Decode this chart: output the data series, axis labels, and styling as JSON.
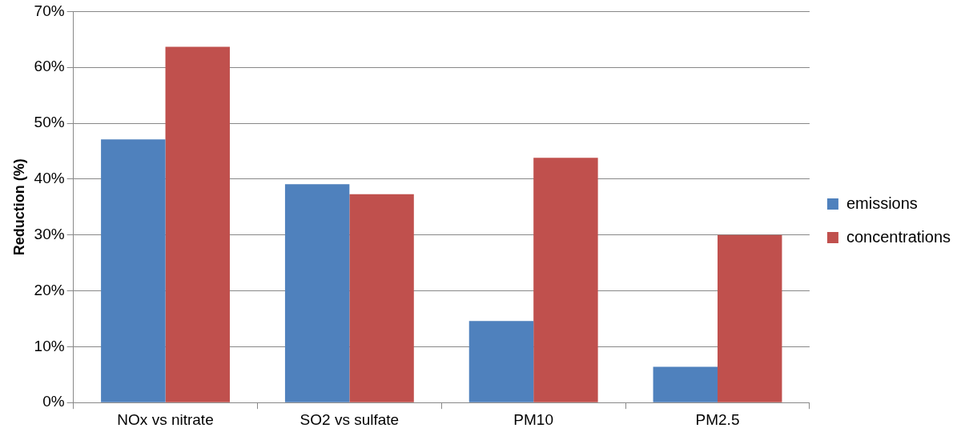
{
  "chart_data": {
    "type": "bar",
    "ylabel": "Reduction (%)",
    "categories": [
      "NOx vs nitrate",
      "SO2 vs sulfate",
      "PM10",
      "PM2.5"
    ],
    "series": [
      {
        "name": "emissions",
        "color": "#4f81bd",
        "values": [
          47.1,
          39.1,
          14.6,
          6.4
        ]
      },
      {
        "name": "concentrations",
        "color": "#c0504d",
        "values": [
          63.7,
          37.3,
          43.8,
          30.0
        ]
      }
    ],
    "ylim": [
      0,
      70
    ],
    "yticks": [
      {
        "value": 0,
        "label": "0%"
      },
      {
        "value": 10,
        "label": "10%"
      },
      {
        "value": 20,
        "label": "20%"
      },
      {
        "value": 30,
        "label": "30%"
      },
      {
        "value": 40,
        "label": "40%"
      },
      {
        "value": 50,
        "label": "50%"
      },
      {
        "value": 60,
        "label": "60%"
      },
      {
        "value": 70,
        "label": "70%"
      }
    ],
    "grid": "y",
    "legend": "right"
  }
}
